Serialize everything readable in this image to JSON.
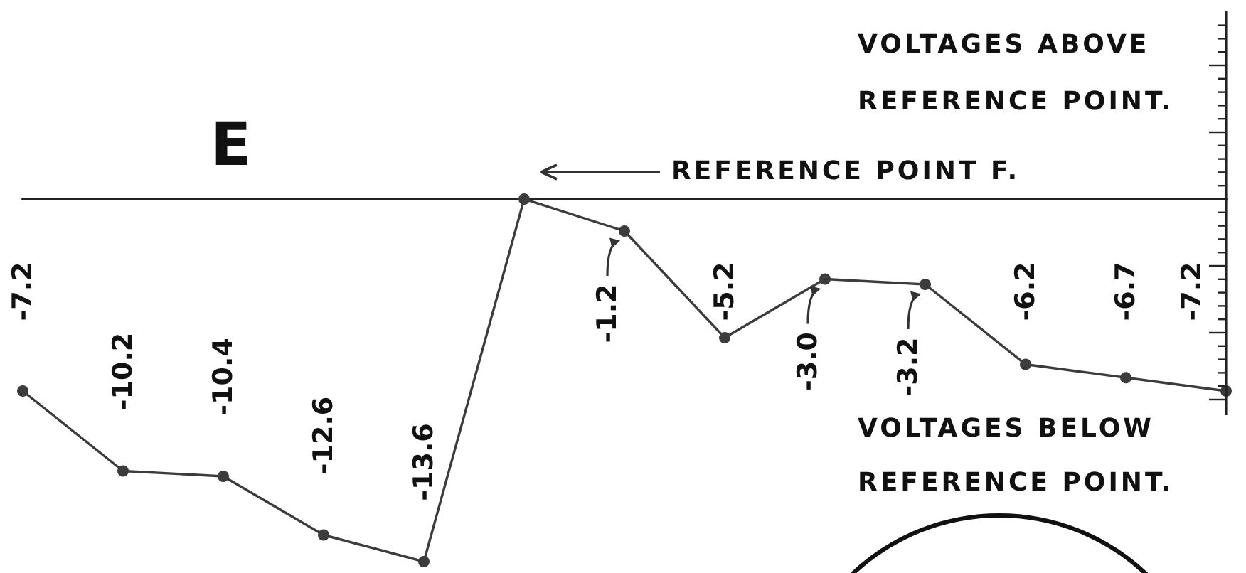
{
  "chart_data": {
    "type": "line",
    "categories": [
      null,
      null,
      null,
      null,
      null,
      null,
      null,
      null,
      null,
      null,
      null,
      null,
      null
    ],
    "values": [
      -7.2,
      -10.2,
      -10.4,
      -12.6,
      -13.6,
      0,
      -1.2,
      -5.2,
      -3.0,
      -3.2,
      -6.2,
      -6.7,
      -7.2
    ],
    "value_labels": [
      "-7.2",
      "-10.2",
      "-10.4",
      "-12.6",
      "-13.6",
      null,
      "-1.2",
      "-5.2",
      "-3.0",
      "-3.2",
      "-6.2",
      "-6.7",
      "-7.2"
    ],
    "color": "#3c3c3c",
    "marker": "circle",
    "line_style": "solid",
    "annotations": [
      "E",
      "VOLTAGES ABOVE REFERENCE POINT.",
      "REFERENCE POINT F.",
      "VOLTAGES BELOW REFERENCE POINT."
    ]
  }
}
